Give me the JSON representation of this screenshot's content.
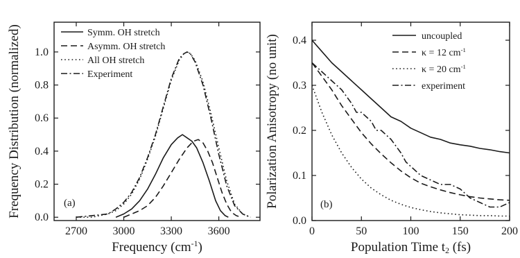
{
  "chart_data": [
    {
      "type": "line",
      "panel_label": "(a)",
      "title": "",
      "xlabel": "Frequency (cm",
      "xlabel_sup": "-1",
      "xlabel_tail": ")",
      "ylabel": "Frequency Distribution (normalized)",
      "xlim": [
        2560,
        3860
      ],
      "ylim": [
        -0.02,
        1.18
      ],
      "x_ticks": [
        2700,
        3000,
        3300,
        3600
      ],
      "y_ticks": [
        0.0,
        0.2,
        0.4,
        0.6,
        0.8,
        1.0
      ],
      "y_tick_labels": [
        "0.0",
        "0.2",
        "0.4",
        "0.6",
        "0.8",
        "1.0"
      ],
      "grid": false,
      "legend_position": "top-left",
      "series": [
        {
          "name": "Symm. OH stretch",
          "dash": "solid",
          "x": [
            2950,
            3000,
            3050,
            3100,
            3150,
            3200,
            3250,
            3300,
            3340,
            3370,
            3400,
            3430,
            3460,
            3500,
            3540,
            3580,
            3610,
            3640,
            3660
          ],
          "y": [
            0.0,
            0.02,
            0.05,
            0.1,
            0.17,
            0.26,
            0.36,
            0.44,
            0.48,
            0.5,
            0.48,
            0.46,
            0.42,
            0.33,
            0.22,
            0.1,
            0.04,
            0.01,
            0.0
          ]
        },
        {
          "name": "Asymm. OH stretch",
          "dash": "dashed",
          "x": [
            3000,
            3050,
            3100,
            3150,
            3200,
            3250,
            3300,
            3350,
            3400,
            3440,
            3470,
            3500,
            3530,
            3560,
            3590,
            3620,
            3650,
            3680,
            3710,
            3740
          ],
          "y": [
            0.0,
            0.02,
            0.04,
            0.07,
            0.12,
            0.19,
            0.27,
            0.35,
            0.42,
            0.46,
            0.47,
            0.45,
            0.4,
            0.33,
            0.24,
            0.15,
            0.08,
            0.03,
            0.01,
            0.0
          ]
        },
        {
          "name": "All OH stretch",
          "dash": "dotted",
          "x": [
            2700,
            2800,
            2900,
            2950,
            3000,
            3050,
            3100,
            3150,
            3200,
            3250,
            3300,
            3350,
            3380,
            3400,
            3420,
            3450,
            3500,
            3550,
            3600,
            3650,
            3700,
            3750,
            3800
          ],
          "y": [
            0.0,
            0.0,
            0.02,
            0.04,
            0.08,
            0.14,
            0.23,
            0.35,
            0.49,
            0.66,
            0.83,
            0.95,
            0.99,
            1.0,
            0.99,
            0.95,
            0.82,
            0.63,
            0.42,
            0.22,
            0.08,
            0.02,
            0.0
          ]
        },
        {
          "name": "Experiment",
          "dash": "dashdot",
          "x": [
            2700,
            2800,
            2900,
            2950,
            3000,
            3050,
            3100,
            3150,
            3200,
            3250,
            3300,
            3350,
            3380,
            3400,
            3420,
            3450,
            3500,
            3550,
            3600,
            3650,
            3700,
            3750,
            3800
          ],
          "y": [
            0.0,
            0.01,
            0.02,
            0.05,
            0.09,
            0.15,
            0.24,
            0.36,
            0.5,
            0.67,
            0.84,
            0.96,
            0.99,
            1.0,
            0.99,
            0.94,
            0.8,
            0.6,
            0.38,
            0.19,
            0.07,
            0.02,
            0.0
          ]
        }
      ]
    },
    {
      "type": "line",
      "panel_label": "(b)",
      "title": "",
      "xlabel": "Population Time t",
      "xlabel_sub": "2",
      "xlabel_tail": " (fs)",
      "ylabel": "Polarization Anisotropy (no unit)",
      "xlim": [
        0,
        200
      ],
      "ylim": [
        0,
        0.44
      ],
      "x_ticks": [
        0,
        50,
        100,
        150,
        200
      ],
      "y_ticks": [
        0.0,
        0.1,
        0.2,
        0.3,
        0.4
      ],
      "y_tick_labels": [
        "0.0",
        "0.1",
        "0.2",
        "0.3",
        "0.4"
      ],
      "grid": false,
      "legend_position": "top-right",
      "series": [
        {
          "name": "uncoupled",
          "dash": "solid",
          "x": [
            0,
            10,
            20,
            30,
            40,
            50,
            60,
            70,
            80,
            90,
            100,
            110,
            120,
            130,
            140,
            150,
            160,
            170,
            180,
            190,
            200
          ],
          "y": [
            0.4,
            0.375,
            0.35,
            0.33,
            0.31,
            0.29,
            0.27,
            0.25,
            0.23,
            0.22,
            0.205,
            0.195,
            0.185,
            0.18,
            0.172,
            0.168,
            0.165,
            0.16,
            0.157,
            0.153,
            0.15
          ]
        },
        {
          "name": "κ = 12 cm",
          "name_sup": "-1",
          "dash": "dashed",
          "x": [
            0,
            10,
            20,
            30,
            40,
            50,
            60,
            70,
            80,
            90,
            100,
            110,
            120,
            130,
            140,
            150,
            160,
            170,
            180,
            190,
            200
          ],
          "y": [
            0.35,
            0.32,
            0.29,
            0.255,
            0.225,
            0.195,
            0.17,
            0.148,
            0.128,
            0.11,
            0.095,
            0.083,
            0.075,
            0.068,
            0.062,
            0.057,
            0.053,
            0.05,
            0.048,
            0.046,
            0.045
          ]
        },
        {
          "name": "κ = 20 cm",
          "name_sup": "-1",
          "dash": "dotted",
          "x": [
            0,
            10,
            20,
            30,
            40,
            50,
            60,
            70,
            80,
            90,
            100,
            110,
            120,
            130,
            140,
            150,
            160,
            170,
            180,
            190,
            200
          ],
          "y": [
            0.3,
            0.24,
            0.19,
            0.15,
            0.118,
            0.092,
            0.072,
            0.057,
            0.045,
            0.036,
            0.029,
            0.024,
            0.02,
            0.017,
            0.015,
            0.013,
            0.012,
            0.011,
            0.011,
            0.01,
            0.01
          ]
        },
        {
          "name": "experiment",
          "dash": "dashdot",
          "x": [
            0,
            10,
            20,
            30,
            40,
            45,
            50,
            60,
            65,
            70,
            80,
            90,
            95,
            100,
            110,
            120,
            130,
            140,
            150,
            160,
            170,
            180,
            190,
            200
          ],
          "y": [
            0.35,
            0.33,
            0.31,
            0.29,
            0.26,
            0.24,
            0.24,
            0.22,
            0.2,
            0.2,
            0.18,
            0.15,
            0.13,
            0.12,
            0.1,
            0.09,
            0.08,
            0.08,
            0.07,
            0.05,
            0.04,
            0.03,
            0.03,
            0.04
          ]
        }
      ]
    }
  ]
}
